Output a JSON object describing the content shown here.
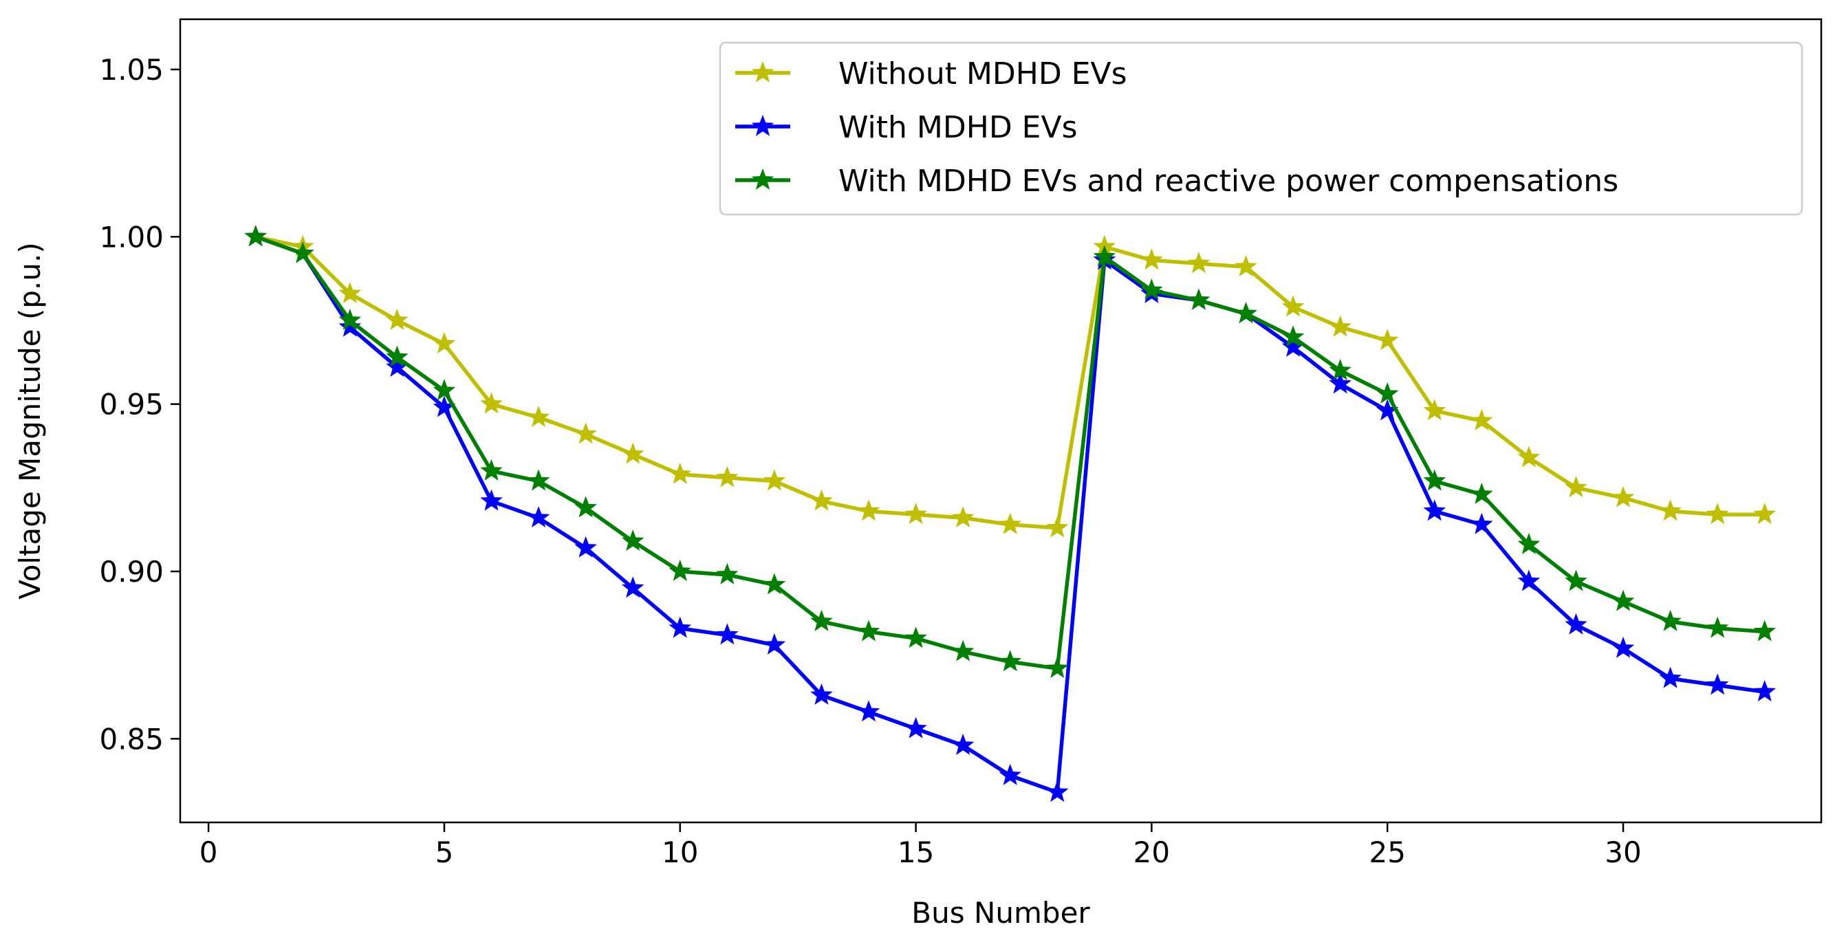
{
  "chart_data": {
    "type": "line",
    "title": "",
    "xlabel": "Bus Number",
    "ylabel": "Voltage Magnitude (p.u.)",
    "xlim": [
      -0.6,
      34.2
    ],
    "ylim": [
      0.825,
      1.065
    ],
    "xticks": [
      0,
      5,
      10,
      15,
      20,
      25,
      30
    ],
    "xtick_labels": [
      "0",
      "5",
      "10",
      "15",
      "20",
      "25",
      "30"
    ],
    "yticks": [
      0.85,
      0.9,
      0.95,
      1.0,
      1.05
    ],
    "ytick_labels": [
      "0.85",
      "0.90",
      "0.95",
      "1.00",
      "1.05"
    ],
    "grid": false,
    "legend_position": "top-right",
    "x": [
      1,
      2,
      3,
      4,
      5,
      6,
      7,
      8,
      9,
      10,
      11,
      12,
      13,
      14,
      15,
      16,
      17,
      18,
      19,
      20,
      21,
      22,
      23,
      24,
      25,
      26,
      27,
      28,
      29,
      30,
      31,
      32,
      33
    ],
    "series": [
      {
        "name": "Without MDHD EVs",
        "color": "#bfbf00",
        "marker": "star",
        "values": [
          1.0,
          0.997,
          0.983,
          0.975,
          0.968,
          0.95,
          0.946,
          0.941,
          0.935,
          0.929,
          0.928,
          0.927,
          0.921,
          0.918,
          0.917,
          0.916,
          0.914,
          0.913,
          0.997,
          0.993,
          0.992,
          0.991,
          0.979,
          0.973,
          0.969,
          0.948,
          0.945,
          0.934,
          0.925,
          0.922,
          0.918,
          0.917,
          0.917
        ]
      },
      {
        "name": "With MDHD EVs",
        "color": "#0000ff",
        "marker": "star",
        "values": [
          1.0,
          0.995,
          0.973,
          0.961,
          0.949,
          0.921,
          0.916,
          0.907,
          0.895,
          0.883,
          0.881,
          0.878,
          0.863,
          0.858,
          0.853,
          0.848,
          0.839,
          0.834,
          0.993,
          0.983,
          0.981,
          0.977,
          0.967,
          0.956,
          0.948,
          0.918,
          0.914,
          0.897,
          0.884,
          0.877,
          0.868,
          0.866,
          0.864
        ]
      },
      {
        "name": "With MDHD EVs and reactive power compensations",
        "color": "#008000",
        "marker": "star",
        "values": [
          1.0,
          0.995,
          0.975,
          0.964,
          0.954,
          0.93,
          0.927,
          0.919,
          0.909,
          0.9,
          0.899,
          0.896,
          0.885,
          0.882,
          0.88,
          0.876,
          0.873,
          0.871,
          0.994,
          0.984,
          0.981,
          0.977,
          0.97,
          0.96,
          0.953,
          0.927,
          0.923,
          0.908,
          0.897,
          0.891,
          0.885,
          0.883,
          0.882
        ]
      }
    ]
  }
}
